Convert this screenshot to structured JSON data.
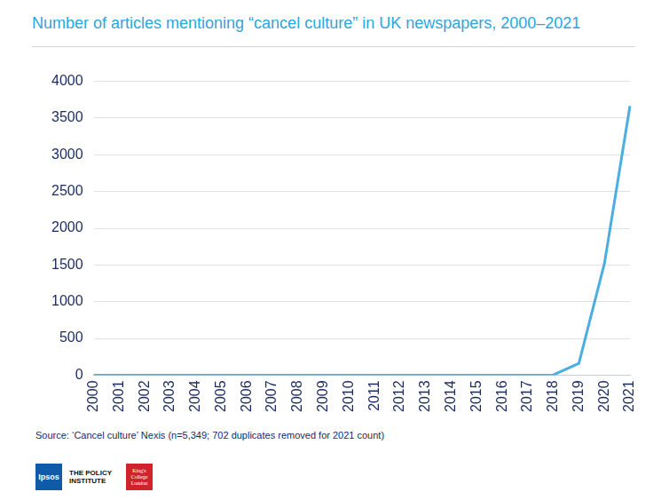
{
  "chart_data": {
    "type": "line",
    "title": "Number of articles mentioning “cancel culture” in UK newspapers, 2000–2021",
    "source": "Source: ‘Cancel culture’ Nexis (n=5,349; 702 duplicates removed for 2021 count)",
    "logos": [
      "Ipsos",
      "THE POLICY INSTITUTE",
      "King's College London"
    ],
    "categories": [
      "2000",
      "2001",
      "2002",
      "2003",
      "2004",
      "2005",
      "2006",
      "2007",
      "2008",
      "2009",
      "2010",
      "2011",
      "2012",
      "2013",
      "2014",
      "2015",
      "2016",
      "2017",
      "2018",
      "2019",
      "2020",
      "2021"
    ],
    "values": [
      0,
      0,
      0,
      0,
      0,
      0,
      0,
      0,
      0,
      0,
      0,
      0,
      0,
      0,
      0,
      0,
      0,
      0,
      3,
      160,
      1520,
      3666
    ],
    "color": "#4aaee0",
    "ylim": [
      0,
      4000
    ],
    "yticks": [
      0,
      500,
      1000,
      1500,
      2000,
      2500,
      3000,
      3500,
      4000
    ],
    "grid": true
  }
}
